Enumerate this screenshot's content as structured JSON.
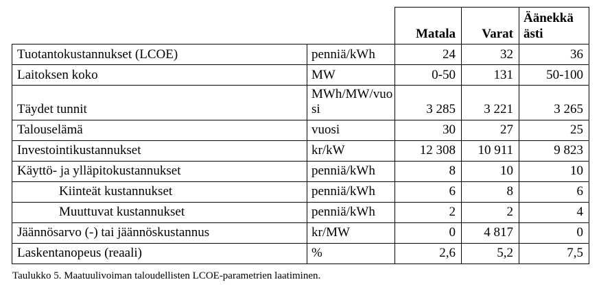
{
  "header": {
    "matala": "Matala",
    "varat": "Varat",
    "aanekkaasti_line1": "Äänekkä",
    "aanekkaasti_line2": "ästi"
  },
  "rows": [
    {
      "label": "Tuotantokustannukset (LCOE)",
      "unit": "penniä/kWh",
      "values": [
        "24",
        "32",
        "36"
      ],
      "indent": false
    },
    {
      "label": "Laitoksen koko",
      "unit": "MW",
      "values": [
        "0-50",
        "131",
        "50-100"
      ],
      "indent": false
    },
    {
      "label": "Täydet tunnit",
      "unit": "MWh/MW/vuosi",
      "values": [
        "3 285",
        "3 221",
        "3 265"
      ],
      "indent": false
    },
    {
      "label": "Talouselämä",
      "unit": "vuosi",
      "values": [
        "30",
        "27",
        "25"
      ],
      "indent": false
    },
    {
      "label": "Investointikustannukset",
      "unit": "kr/kW",
      "values": [
        "12 308",
        "10 911",
        "9 823"
      ],
      "indent": false
    },
    {
      "label": "Käyttö- ja ylläpitokustannukset",
      "unit": "penniä/kWh",
      "values": [
        "8",
        "10",
        "10"
      ],
      "indent": false
    },
    {
      "label": "Kiinteät kustannukset",
      "unit": "penniä/kWh",
      "values": [
        "6",
        "8",
        "6"
      ],
      "indent": true
    },
    {
      "label": "Muuttuvat kustannukset",
      "unit": "penniä/kWh",
      "values": [
        "2",
        "2",
        "4"
      ],
      "indent": true
    },
    {
      "label": "Jäännösarvo (-) tai jäännöskustannus",
      "unit": "kr/MW",
      "values": [
        "0",
        "4 817",
        "0"
      ],
      "indent": false
    },
    {
      "label": "Laskentanopeus (reaali)",
      "unit": "%",
      "values": [
        "2,6",
        "5,2",
        "7,5"
      ],
      "indent": false
    }
  ],
  "caption": "Taulukko 5. Maatuulivoiman taloudellisten LCOE-parametrien laatiminen."
}
